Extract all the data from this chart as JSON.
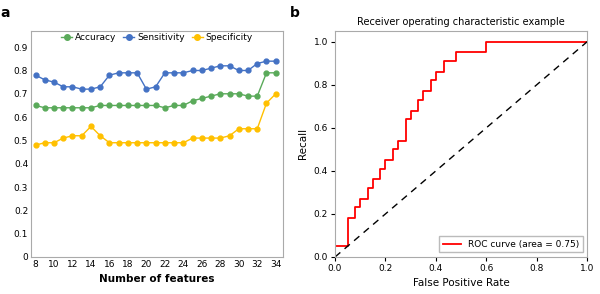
{
  "features": [
    8,
    9,
    10,
    11,
    12,
    13,
    14,
    15,
    16,
    17,
    18,
    19,
    20,
    21,
    22,
    23,
    24,
    25,
    26,
    27,
    28,
    29,
    30,
    31,
    32,
    33,
    34
  ],
  "accuracy": [
    0.65,
    0.64,
    0.64,
    0.64,
    0.64,
    0.64,
    0.64,
    0.65,
    0.65,
    0.65,
    0.65,
    0.65,
    0.65,
    0.65,
    0.64,
    0.65,
    0.65,
    0.67,
    0.68,
    0.69,
    0.7,
    0.7,
    0.7,
    0.69,
    0.69,
    0.79,
    0.79
  ],
  "sensitivity": [
    0.78,
    0.76,
    0.75,
    0.73,
    0.73,
    0.72,
    0.72,
    0.73,
    0.78,
    0.79,
    0.79,
    0.79,
    0.72,
    0.73,
    0.79,
    0.79,
    0.79,
    0.8,
    0.8,
    0.81,
    0.82,
    0.82,
    0.8,
    0.8,
    0.83,
    0.84,
    0.84
  ],
  "specificity": [
    0.48,
    0.49,
    0.49,
    0.51,
    0.52,
    0.52,
    0.56,
    0.52,
    0.49,
    0.49,
    0.49,
    0.49,
    0.49,
    0.49,
    0.49,
    0.49,
    0.49,
    0.51,
    0.51,
    0.51,
    0.51,
    0.52,
    0.55,
    0.55,
    0.55,
    0.66,
    0.7
  ],
  "acc_color": "#5aaa5a",
  "sens_color": "#4472c4",
  "spec_color": "#ffc000",
  "roc_fpr": [
    0.0,
    0.0,
    0.05,
    0.05,
    0.08,
    0.08,
    0.1,
    0.1,
    0.13,
    0.13,
    0.15,
    0.15,
    0.18,
    0.18,
    0.2,
    0.2,
    0.23,
    0.23,
    0.25,
    0.25,
    0.28,
    0.28,
    0.3,
    0.3,
    0.33,
    0.33,
    0.35,
    0.35,
    0.38,
    0.38,
    0.4,
    0.4,
    0.43,
    0.43,
    0.45,
    0.45,
    0.48,
    0.48,
    0.5,
    0.5,
    0.55,
    0.55,
    0.6,
    0.6,
    0.88,
    0.88,
    1.0,
    1.0
  ],
  "roc_tpr": [
    0.0,
    0.05,
    0.05,
    0.18,
    0.18,
    0.23,
    0.23,
    0.27,
    0.27,
    0.32,
    0.32,
    0.36,
    0.36,
    0.41,
    0.41,
    0.45,
    0.45,
    0.5,
    0.5,
    0.54,
    0.54,
    0.64,
    0.64,
    0.68,
    0.68,
    0.73,
    0.73,
    0.77,
    0.77,
    0.82,
    0.82,
    0.86,
    0.86,
    0.91,
    0.91,
    0.91,
    0.91,
    0.95,
    0.95,
    0.95,
    0.95,
    0.95,
    0.95,
    1.0,
    1.0,
    1.0,
    1.0,
    1.0
  ],
  "roc_title": "Receiver operating characteristic example",
  "roc_xlabel": "False Positive Rate",
  "roc_ylabel": "Recall",
  "roc_legend": "ROC curve (area = 0.75)",
  "xlabel_left": "Number of features",
  "xticks_left": [
    8,
    10,
    12,
    14,
    16,
    18,
    20,
    22,
    24,
    26,
    28,
    30,
    32,
    34
  ],
  "yticks_left": [
    0,
    0.1,
    0.2,
    0.3,
    0.4,
    0.5,
    0.6,
    0.7,
    0.8,
    0.9
  ],
  "ylim_left": [
    0,
    0.97
  ],
  "bg_color": "#ffffff"
}
